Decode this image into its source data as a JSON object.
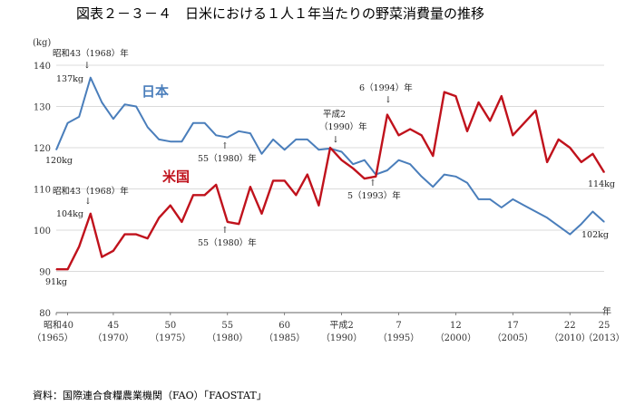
{
  "page": {
    "title": "図表２－３－４　日米における１人１年当たりの野菜消費量の推移",
    "source": "資料：国際連合食糧農業機関（FAO）「FAOSTAT」"
  },
  "chart_data": {
    "type": "line",
    "title": "図表２－３－４　日米における１人１年当たりの野菜消費量の推移",
    "ylabel": "(kg)",
    "xlabel": "年",
    "ylim": [
      80,
      140
    ],
    "yticks": [
      80,
      90,
      100,
      110,
      120,
      130,
      140
    ],
    "xlim": [
      1965,
      2013
    ],
    "grid": "horizontal",
    "x_ticks": [
      {
        "year": 1965,
        "top": "昭和",
        "bottom": "（1965）"
      },
      {
        "year": 1966,
        "top": "40",
        "bottom": ""
      },
      {
        "year": 1970,
        "top": "45",
        "bottom": "（1970）"
      },
      {
        "year": 1975,
        "top": "50",
        "bottom": "（1975）"
      },
      {
        "year": 1980,
        "top": "55",
        "bottom": "（1980）"
      },
      {
        "year": 1985,
        "top": "60",
        "bottom": "（1985）"
      },
      {
        "year": 1990,
        "top": "平成2",
        "bottom": "（1990）"
      },
      {
        "year": 1995,
        "top": "7",
        "bottom": "（1995）"
      },
      {
        "year": 2000,
        "top": "12",
        "bottom": "（2000）"
      },
      {
        "year": 2005,
        "top": "17",
        "bottom": "（2005）"
      },
      {
        "year": 2010,
        "top": "22",
        "bottom": "（2010）"
      },
      {
        "year": 2013,
        "top": "25",
        "bottom": "（2013）"
      }
    ],
    "x": [
      1965,
      1966,
      1967,
      1968,
      1969,
      1970,
      1971,
      1972,
      1973,
      1974,
      1975,
      1976,
      1977,
      1978,
      1979,
      1980,
      1981,
      1982,
      1983,
      1984,
      1985,
      1986,
      1987,
      1988,
      1989,
      1990,
      1991,
      1992,
      1993,
      1994,
      1995,
      1996,
      1997,
      1998,
      1999,
      2000,
      2001,
      2002,
      2003,
      2004,
      2005,
      2006,
      2007,
      2008,
      2009,
      2010,
      2011,
      2012,
      2013
    ],
    "series": [
      {
        "name": "日本",
        "color": "#4a7ebb",
        "values": [
          119.5,
          126,
          127.5,
          137,
          131,
          127,
          130.5,
          130,
          125,
          122,
          121.5,
          121.5,
          126,
          126,
          123,
          122.5,
          124,
          123.5,
          118.5,
          122,
          119.5,
          122,
          122,
          119.5,
          119.8,
          119,
          116,
          117,
          113.5,
          114.5,
          117,
          116,
          113,
          110.5,
          113.5,
          113,
          111.5,
          107.5,
          107.5,
          105.5,
          107.5,
          106,
          104.5,
          103,
          101,
          99,
          101.5,
          104.5,
          102
        ]
      },
      {
        "name": "米国",
        "color": "#c0121c",
        "values": [
          90.5,
          90.5,
          96,
          104,
          93.5,
          95,
          99,
          99,
          98,
          103,
          106,
          102,
          108.5,
          108.5,
          111,
          102,
          101.5,
          110.5,
          104,
          112,
          112,
          108.5,
          113.5,
          106,
          120,
          117,
          115,
          112.5,
          113,
          128,
          123,
          124.5,
          123,
          118,
          133.5,
          132.5,
          124,
          131,
          126.5,
          132.5,
          123,
          126,
          129,
          116.5,
          122,
          120,
          116.5,
          118.5,
          114
        ]
      }
    ],
    "annotations": [
      {
        "text": "昭和43（1968）年",
        "arrow": "↓",
        "value": "137kg"
      },
      {
        "text": "120kg"
      },
      {
        "text": "55（1980）年",
        "arrow": "↑"
      },
      {
        "text": "平成2",
        "text2": "（1990）年",
        "arrow": "↓"
      },
      {
        "text": "6（1994）年",
        "arrow": "↓"
      },
      {
        "text": "5（1993）年",
        "arrow": "↑"
      },
      {
        "text": "114kg"
      },
      {
        "text": "102kg"
      },
      {
        "text": "昭和43（1968）年",
        "arrow": "↓",
        "value": "104kg"
      },
      {
        "text": "55（1980）年",
        "arrow": "↑"
      },
      {
        "text": "91kg"
      }
    ]
  }
}
